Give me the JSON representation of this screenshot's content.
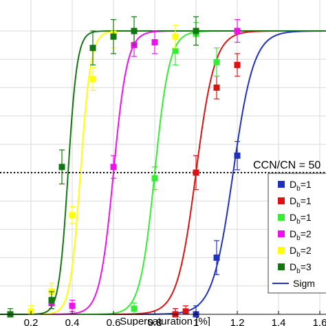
{
  "chart_data": {
    "type": "scatter",
    "xlabel": "Supersaturation [%]",
    "ylabel": "",
    "xlim": [
      0.05,
      1.63
    ],
    "ylim": [
      0,
      1.0
    ],
    "x_ticks": [
      "0.2",
      "0.4",
      "0.6",
      "0.8",
      "1",
      "1.2",
      "1.4",
      "1.6"
    ],
    "grid": true,
    "legend_position": "right",
    "annotation": {
      "text": "CCN/CN = 50",
      "y": 0.5,
      "line_style": "dotted"
    },
    "series": [
      {
        "name": "D₁=1",
        "legend_main": "D",
        "legend_sub": "b",
        "legend_rest": "=1",
        "color": "#1f2fbf",
        "marker": "square",
        "d50": 1.18,
        "slope": 20,
        "points": [
          {
            "x": 0.9,
            "y": 0.0,
            "err": 0.02
          },
          {
            "x": 1.0,
            "y": 0.0,
            "err": 0.03
          },
          {
            "x": 1.1,
            "y": 0.2,
            "err": 0.06
          },
          {
            "x": 1.2,
            "y": 0.56,
            "err": 0.05
          }
        ]
      },
      {
        "name": "D₁=1",
        "legend_main": "D",
        "legend_sub": "b",
        "legend_rest": "=1",
        "color": "#dd1111",
        "marker": "square",
        "d50": 1.0,
        "slope": 22,
        "points": [
          {
            "x": 0.9,
            "y": 0.0,
            "err": 0.02
          },
          {
            "x": 0.95,
            "y": 0.01,
            "err": 0.02
          },
          {
            "x": 1.0,
            "y": 0.5,
            "err": 0.06
          },
          {
            "x": 1.1,
            "y": 0.8,
            "err": 0.04
          },
          {
            "x": 1.2,
            "y": 0.88,
            "err": 0.04
          }
        ]
      },
      {
        "name": "D₁=1",
        "legend_main": "D",
        "legend_sub": "b",
        "legend_rest": "=1",
        "color": "#33ee33",
        "marker": "square",
        "d50": 0.8,
        "slope": 28,
        "points": [
          {
            "x": 0.7,
            "y": 0.02,
            "err": 0.02
          },
          {
            "x": 0.8,
            "y": 0.48,
            "err": 0.04
          },
          {
            "x": 0.9,
            "y": 0.93,
            "err": 0.05
          },
          {
            "x": 1.0,
            "y": 0.99,
            "err": 0.04
          },
          {
            "x": 1.1,
            "y": 0.89,
            "err": 0.05
          }
        ]
      },
      {
        "name": "D₂=2",
        "legend_main": "D",
        "legend_sub": "b",
        "legend_rest": "=2",
        "color": "#ee11ee",
        "marker": "square",
        "d50": 0.6,
        "slope": 30,
        "points": [
          {
            "x": 0.3,
            "y": 0.04,
            "err": 0.02
          },
          {
            "x": 0.4,
            "y": 0.03,
            "err": 0.02
          },
          {
            "x": 0.6,
            "y": 0.52,
            "err": 0.04
          },
          {
            "x": 0.7,
            "y": 0.95,
            "err": 0.04
          },
          {
            "x": 0.8,
            "y": 0.96,
            "err": 0.04
          },
          {
            "x": 1.2,
            "y": 1.0,
            "err": 0.04
          }
        ]
      },
      {
        "name": "D₂=2",
        "legend_main": "D",
        "legend_sub": "b",
        "legend_rest": "=2",
        "color": "#ffff00",
        "marker": "square",
        "d50": 0.44,
        "slope": 40,
        "points": [
          {
            "x": 0.2,
            "y": 0.01,
            "err": 0.02
          },
          {
            "x": 0.3,
            "y": 0.08,
            "err": 0.03
          },
          {
            "x": 0.4,
            "y": 0.35,
            "err": 0.03
          },
          {
            "x": 0.5,
            "y": 0.83,
            "err": 0.04
          },
          {
            "x": 0.6,
            "y": 0.99,
            "err": 0.05
          },
          {
            "x": 0.9,
            "y": 0.98,
            "err": 0.04
          }
        ]
      },
      {
        "name": "D₃=3",
        "legend_main": "D",
        "legend_sub": "b",
        "legend_rest": "=3",
        "color": "#117711",
        "marker": "square",
        "d50": 0.38,
        "slope": 45,
        "points": [
          {
            "x": 0.1,
            "y": 0.0,
            "err": 0.02
          },
          {
            "x": 0.3,
            "y": 0.05,
            "err": 0.03
          },
          {
            "x": 0.35,
            "y": 0.52,
            "err": 0.06
          },
          {
            "x": 0.5,
            "y": 0.94,
            "err": 0.06
          },
          {
            "x": 0.6,
            "y": 0.98,
            "err": 0.06
          },
          {
            "x": 0.7,
            "y": 1.0,
            "err": 0.05
          },
          {
            "x": 1.0,
            "y": 1.0,
            "err": 0.05
          }
        ]
      }
    ],
    "fit_legend_label": "Sigm"
  }
}
